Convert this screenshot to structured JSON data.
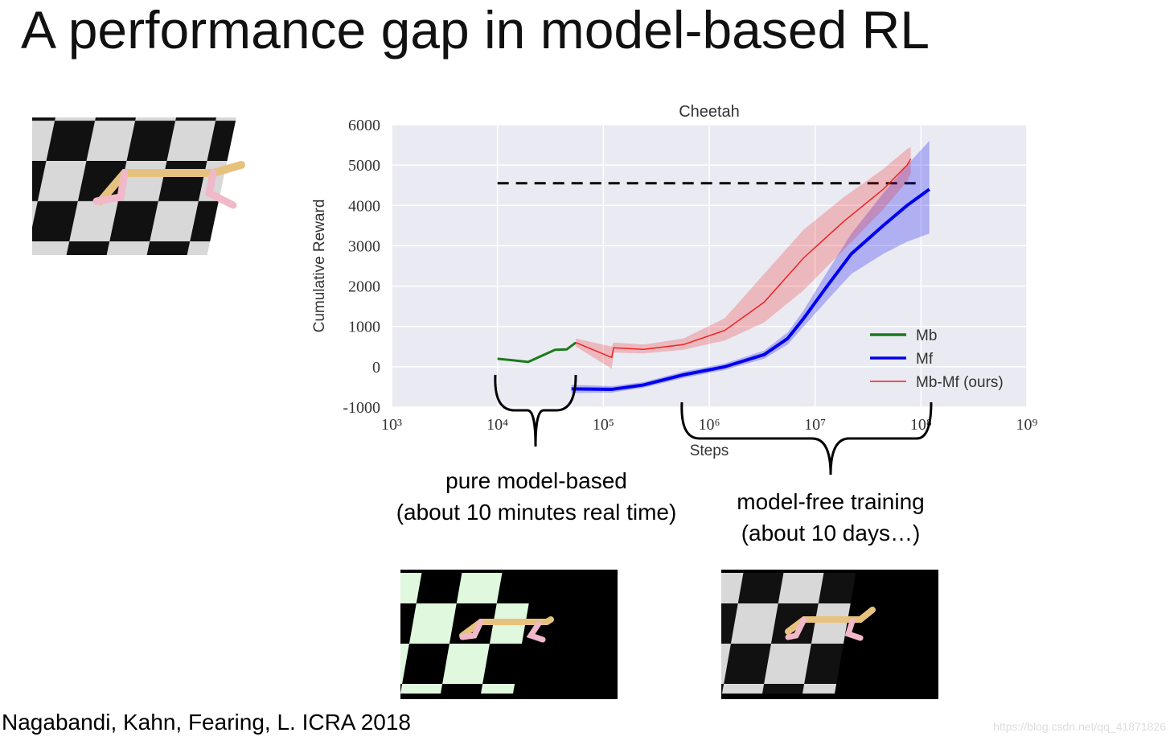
{
  "slide": {
    "title": "A performance gap in model-based RL",
    "annotations": [
      "pure model-based",
      "(about 10 minutes real time)",
      "model-free training",
      "(about 10 days…)"
    ],
    "citation": "Nagabandi, Kahn, Fearing, L. ICRA 2018",
    "watermark": "https://blog.csdn.net/qq_41871826"
  },
  "chart_data": {
    "type": "line",
    "title": "Cheetah",
    "x_label": "Steps",
    "y_label": "Cumulative Reward",
    "x_scale": "log",
    "xlim": [
      1000,
      1000000000
    ],
    "xticks": [
      {
        "value": 1000,
        "label": "10³"
      },
      {
        "value": 10000,
        "label": "10⁴"
      },
      {
        "value": 100000,
        "label": "10⁵"
      },
      {
        "value": 1000000,
        "label": "10⁶"
      },
      {
        "value": 10000000,
        "label": "10⁷"
      },
      {
        "value": 100000000,
        "label": "10⁸"
      },
      {
        "value": 1000000000,
        "label": "10⁹"
      }
    ],
    "ylim": [
      -1000,
      6000
    ],
    "yticks": [
      -1000,
      0,
      1000,
      2000,
      3000,
      4000,
      5000,
      6000
    ],
    "grid": true,
    "legend": "lower right",
    "reference_line": {
      "y": 4550,
      "x": [
        10000,
        100000000
      ]
    },
    "series": [
      {
        "name": "Mb",
        "color": "#1a7a1a",
        "x": [
          10000,
          19500,
          35000,
          45000,
          55000
        ],
        "values": [
          200,
          120,
          420,
          430,
          600
        ]
      },
      {
        "name": "Mf",
        "color": "#0000ee",
        "x": [
          50000,
          120000,
          240000,
          570000,
          1400000,
          3300000,
          5500000,
          7800000,
          13000000,
          22000000,
          44000000,
          74000000,
          120000000
        ],
        "values": [
          -550,
          -560,
          -450,
          -200,
          0,
          300,
          700,
          1200,
          2000,
          2800,
          3500,
          4000,
          4400
        ],
        "lower": [
          -650,
          -640,
          -520,
          -280,
          -80,
          200,
          550,
          1000,
          1650,
          2300,
          2800,
          3100,
          3300
        ],
        "upper": [
          -450,
          -480,
          -380,
          -120,
          80,
          400,
          850,
          1400,
          2350,
          3300,
          4300,
          5000,
          5600
        ]
      },
      {
        "name": "Mb-Mf (ours)",
        "color": "#ee2222",
        "x": [
          55000,
          120000,
          125000,
          240000,
          570000,
          1400000,
          3300000,
          7800000,
          18600000,
          44000000,
          74000000,
          80000000
        ],
        "values": [
          600,
          230,
          470,
          430,
          550,
          900,
          1600,
          2700,
          3600,
          4400,
          5000,
          5150
        ],
        "lower": [
          500,
          -50,
          350,
          330,
          420,
          650,
          1100,
          1900,
          2900,
          3900,
          4600,
          4800
        ],
        "upper": [
          700,
          500,
          600,
          550,
          700,
          1200,
          2300,
          3400,
          4200,
          4900,
          5400,
          5450
        ]
      }
    ]
  }
}
